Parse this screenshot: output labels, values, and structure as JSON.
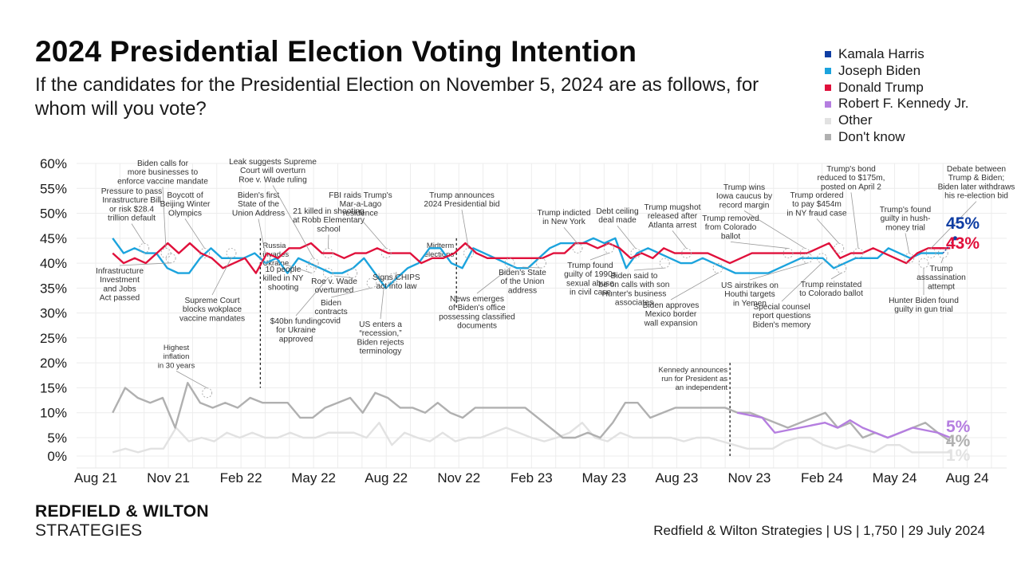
{
  "header": {
    "title": "2024 Presidential Election Voting Intention",
    "subtitle": "If the candidates for the Presidential Election on November 5, 2024 are as follows, for whom will you vote?"
  },
  "footer": {
    "brand_line1": "REDFIELD & WILTON",
    "brand_line2": "STRATEGIES",
    "source": "Redfield & Wilton Strategies | US | 1,750 | 29 July 2024"
  },
  "chart_data": {
    "type": "line",
    "title": "2024 Presidential Election Voting Intention",
    "xlabel": "",
    "ylabel": "",
    "ylim": [
      0,
      60
    ],
    "grid": true,
    "legend_position": "top-right",
    "y_ticks": [
      "60%",
      "55%",
      "50%",
      "45%",
      "40%",
      "35%",
      "30%",
      "25%",
      "20%",
      "15%",
      "10%",
      "5%",
      "0%"
    ],
    "y_tick_values": [
      60,
      55,
      50,
      45,
      40,
      35,
      30,
      25,
      20,
      15,
      10,
      5,
      0
    ],
    "x_ticks": [
      "Aug 21",
      "Nov 21",
      "Feb 22",
      "May 22",
      "Aug 22",
      "Nov 22",
      "Feb 23",
      "May 23",
      "Aug 23",
      "Nov 23",
      "Feb 24",
      "May 24",
      "Aug 24"
    ],
    "x_start_month": 0.7,
    "x_end_month": 35.3,
    "series": [
      {
        "name": "Joseph Biden",
        "color": "#1ba3dd",
        "start_month": 0.7,
        "end_month": 35.0,
        "values": [
          45,
          42,
          43,
          42,
          42,
          39,
          38,
          38,
          41,
          43,
          41,
          41,
          41,
          42,
          40,
          41,
          38,
          41,
          40,
          39,
          38,
          38,
          39,
          41,
          38,
          35,
          37,
          39,
          40,
          43,
          43,
          40,
          39,
          43,
          42,
          41,
          40,
          39,
          39,
          41,
          43,
          44,
          44,
          44,
          45,
          44,
          45,
          39,
          42,
          43,
          42,
          41,
          40,
          40,
          41,
          40,
          39,
          38,
          38,
          38,
          38,
          39,
          40,
          41,
          41,
          41,
          39,
          40,
          41,
          41,
          41,
          43,
          42,
          41,
          42,
          42,
          42
        ]
      },
      {
        "name": "Donald Trump",
        "color": "#e0103b",
        "start_month": 0.7,
        "end_month": 35.3,
        "values": [
          42,
          40,
          41,
          40,
          42,
          44,
          42,
          44,
          42,
          41,
          39,
          40,
          41,
          38,
          42,
          41,
          43,
          43,
          44,
          42,
          42,
          41,
          42,
          42,
          43,
          42,
          42,
          42,
          40,
          41,
          41,
          42,
          44,
          42,
          41,
          41,
          41,
          41,
          41,
          41,
          42,
          42,
          44,
          44,
          43,
          44,
          43,
          41,
          42,
          41,
          43,
          42,
          42,
          42,
          42,
          41,
          40,
          41,
          42,
          42,
          42,
          42,
          42,
          42,
          43,
          44,
          41,
          42,
          42,
          43,
          42,
          41,
          40,
          42,
          43,
          43,
          43
        ]
      },
      {
        "name": "Kamala Harris",
        "color": "#0f3ea3",
        "start_month": 35.0,
        "end_month": 35.5,
        "values": [
          42,
          45
        ],
        "end_label": "45%"
      },
      {
        "name": "Robert F. Kennedy Jr.",
        "color": "#b57ee0",
        "start_month": 26.5,
        "end_month": 35.3,
        "values": [
          10,
          9.5,
          9,
          6,
          6.5,
          7,
          7.5,
          8,
          7,
          8.5,
          7,
          6,
          5,
          6,
          7,
          6.5,
          6,
          5
        ],
        "end_label": "5%"
      },
      {
        "name": "Other",
        "color": "#e2e2e2",
        "start_month": 0.7,
        "end_month": 35.3,
        "values": [
          1,
          2,
          1,
          2,
          2,
          7,
          4,
          5,
          4,
          6,
          5,
          6,
          5,
          5,
          6,
          5,
          5,
          6,
          6,
          6,
          5,
          8,
          3,
          6,
          5,
          4,
          6,
          4,
          5,
          5,
          6,
          7,
          6,
          5,
          4,
          5,
          6,
          8,
          5,
          4,
          6,
          5,
          5,
          5,
          5,
          4,
          5,
          5,
          4,
          3,
          2,
          2,
          2,
          4,
          5,
          5,
          3,
          2,
          3,
          2,
          1,
          3,
          3,
          1,
          1,
          1,
          1
        ],
        "end_label": "1%"
      },
      {
        "name": "Don't know",
        "color": "#b0b0b0",
        "start_month": 0.7,
        "end_month": 35.3,
        "values": [
          10,
          15,
          13,
          12,
          13,
          7,
          16,
          12,
          11,
          12,
          11,
          13,
          12,
          12,
          12,
          9,
          9,
          11,
          12,
          13,
          10,
          14,
          13,
          11,
          11,
          10,
          12,
          10,
          9,
          11,
          11,
          11,
          11,
          11,
          9,
          7,
          5,
          5,
          6,
          5,
          8,
          12,
          12,
          9,
          10,
          11,
          11,
          11,
          11,
          11,
          10,
          10,
          9,
          8,
          7,
          8,
          9,
          10,
          7,
          8,
          5,
          6,
          5,
          6,
          7,
          8,
          6,
          4
        ],
        "end_label": "4%"
      }
    ],
    "legend": [
      {
        "label": "Kamala Harris",
        "color": "#0f3ea3"
      },
      {
        "label": "Joseph Biden",
        "color": "#1ba3dd"
      },
      {
        "label": "Donald Trump",
        "color": "#e0103b"
      },
      {
        "label": "Robert F. Kennedy Jr.",
        "color": "#b57ee0"
      },
      {
        "label": "Other",
        "color": "#e2e2e2"
      },
      {
        "label": "Don't know",
        "color": "#b0b0b0"
      }
    ],
    "vertical_markers": [
      {
        "month": 6.8,
        "label_lines": [
          "Russia",
          "invades",
          "Ukraine"
        ],
        "from": 15,
        "to": 45
      },
      {
        "month": 14.9,
        "label_lines": [
          "Midterm",
          "elections"
        ],
        "from": 31,
        "to": 45
      },
      {
        "month": 26.2,
        "label_lines": [
          "Kennedy announces",
          "run for President as",
          "an independent"
        ],
        "from": 0,
        "to": 20
      }
    ],
    "annotations": [
      {
        "lines": [
          "Pressure to pass",
          "Inrastructure Bill",
          "or risk $28.4",
          "trillion default"
        ],
        "month": 2.0,
        "value": 43
      },
      {
        "lines": [
          "Biden calls for",
          "more businesses to",
          "enforce vaccine mandate"
        ],
        "month": 2.9,
        "value": 42
      },
      {
        "lines": [
          "Boycott of",
          "Beijing Winter",
          "Olympics"
        ],
        "month": 4.5,
        "value": 42
      },
      {
        "lines": [
          "Infrastructure",
          "Investment",
          "and Jobs",
          "Act passed"
        ],
        "month": 3.1,
        "value": 41
      },
      {
        "lines": [
          "Supreme Court",
          "blocks wokplace",
          "vaccine mandates"
        ],
        "month": 5.6,
        "value": 42
      },
      {
        "lines": [
          "Biden's first",
          "State of the",
          "Union Address"
        ],
        "month": 7.0,
        "value": 41
      },
      {
        "lines": [
          "Leak suggests Supreme",
          "Court will overturn",
          "Roe v. Wade ruling"
        ],
        "month": 9.0,
        "value": 40
      },
      {
        "lines": [
          "10 people",
          "killed in NY",
          "shooting"
        ],
        "month": 8.9,
        "value": 39
      },
      {
        "lines": [
          "21 killed in shooting",
          "at Robb Elementary",
          "school"
        ],
        "month": 9.6,
        "value": 42
      },
      {
        "lines": [
          "$40bn funding",
          "for Ukraine",
          "approved"
        ],
        "month": 9.6,
        "value": 38
      },
      {
        "lines": [
          "Roe v. Wade",
          "overturned"
        ],
        "month": 10.6,
        "value": 38
      },
      {
        "lines": [
          "Biden",
          "contracts",
          "covid"
        ],
        "month": 11.4,
        "value": 36
      },
      {
        "lines": [
          "FBI raids Trump's",
          "Mar-a-Lago",
          "residence"
        ],
        "month": 12.0,
        "value": 42
      },
      {
        "lines": [
          "US enters a",
          "“recession,”",
          "Biden rejects",
          "terminology"
        ],
        "month": 11.9,
        "value": 36
      },
      {
        "lines": [
          "Signs CHIPS",
          "act into law"
        ],
        "month": 12.3,
        "value": 37
      },
      {
        "lines": [
          "Trump announces",
          "2024 Presidential bid"
        ],
        "month": 15.4,
        "value": 42
      },
      {
        "lines": [
          "News emerges",
          "of Biden's office",
          "possessing classified",
          "documents"
        ],
        "month": 17.1,
        "value": 40
      },
      {
        "lines": [
          "Biden's State",
          "of the Union",
          "address"
        ],
        "month": 18.4,
        "value": 40
      },
      {
        "lines": [
          "Trump indicted",
          "in New York"
        ],
        "month": 19.9,
        "value": 43
      },
      {
        "lines": [
          "Trump found",
          "guilty of 1990s",
          "sexual abuse",
          "in civil case"
        ],
        "month": 21.2,
        "value": 43
      },
      {
        "lines": [
          "Debt ceiling",
          "deal made"
        ],
        "month": 22.3,
        "value": 42
      },
      {
        "lines": [
          "Biden said to",
          "be on calls with son",
          "Hunter's business",
          "associates"
        ],
        "month": 23.5,
        "value": 40
      },
      {
        "lines": [
          "Trump mugshot",
          "released after",
          "Atlanta arrest"
        ],
        "month": 24.4,
        "value": 42
      },
      {
        "lines": [
          "Biden approves",
          "Mexico border",
          "wall expansion"
        ],
        "month": 25.7,
        "value": 39
      },
      {
        "lines": [
          "Trump removed",
          "from Colorado",
          "ballot"
        ],
        "month": 28.6,
        "value": 42
      },
      {
        "lines": [
          "Trump wins",
          "Iowa caucus by",
          "record margin"
        ],
        "month": 29.3,
        "value": 42
      },
      {
        "lines": [
          "US airstrikes on",
          "Houthi targets",
          "in Yemen"
        ],
        "month": 29.4,
        "value": 41
      },
      {
        "lines": [
          "Special counsel",
          "report questions",
          "Biden's memory"
        ],
        "month": 30.0,
        "value": 41
      },
      {
        "lines": [
          "Trump ordered",
          "to pay $454m",
          "in NY fraud case"
        ],
        "month": 30.7,
        "value": 43
      },
      {
        "lines": [
          "Trump reinstated",
          "to Colorado ballot"
        ],
        "month": 30.8,
        "value": 39
      },
      {
        "lines": [
          "Trump's bond",
          "reduced to $175m,",
          "posted on April 2"
        ],
        "month": 31.5,
        "value": 42
      },
      {
        "lines": [
          "Trump's found",
          "guilty in hush-",
          "money trial"
        ],
        "month": 33.6,
        "value": 41
      },
      {
        "lines": [
          "Hunter Biden found",
          "guilty in gun trial"
        ],
        "month": 34.2,
        "value": 40
      },
      {
        "lines": [
          "Debate between",
          "Trump & Biden;",
          "Biden later withdraws",
          "his re-election bid"
        ],
        "month": 34.5,
        "value": 42
      },
      {
        "lines": [
          "Trump",
          "assassination",
          "attempt"
        ],
        "month": 35.0,
        "value": 42
      },
      {
        "lines": [
          "Highest",
          "inflation",
          "in 30 years"
        ],
        "month": 4.6,
        "value": 14
      }
    ],
    "end_labels": [
      {
        "series": "Kamala Harris",
        "text": "45%",
        "color": "#0f3ea3"
      },
      {
        "series": "Donald Trump",
        "text": "43%",
        "color": "#e0103b"
      },
      {
        "series": "Robert F. Kennedy Jr.",
        "text": "5%",
        "color": "#b57ee0"
      },
      {
        "series": "Don't know",
        "text": "4%",
        "color": "#b0b0b0"
      },
      {
        "series": "Other",
        "text": "1%",
        "color": "#e2e2e2"
      }
    ]
  }
}
